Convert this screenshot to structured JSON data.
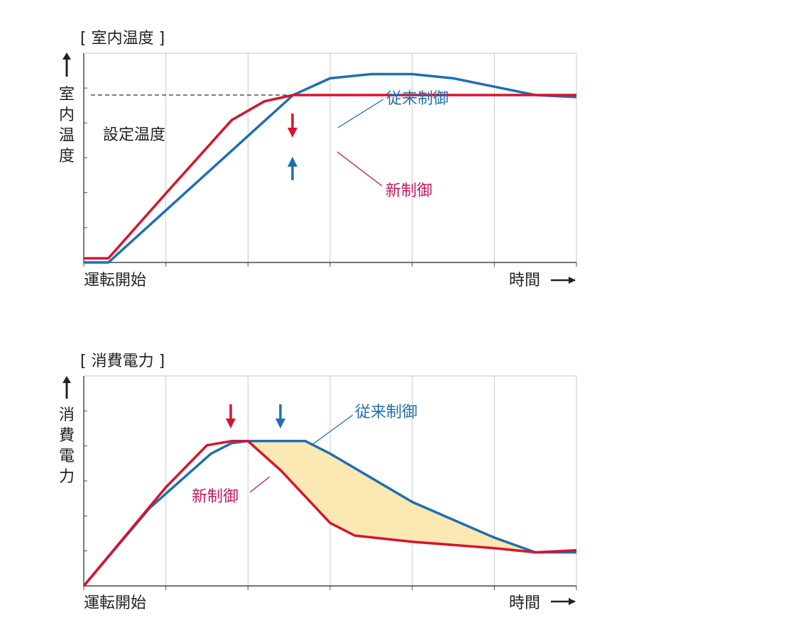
{
  "colors": {
    "new_control": "#d7142c",
    "conventional_control": "#1f6fb2",
    "new_label": "#c2185b",
    "saving_fill": "#fbe8b3",
    "grid": "#c8c8c8",
    "axis": "#222222"
  },
  "chart_data": [
    {
      "type": "line",
      "title": "[ 室内温度 ]",
      "ylabel": "室内温度",
      "xlabel_start": "運転開始",
      "xlabel_end": "時間",
      "setpoint_label": "設定温度",
      "setpoint": 0.8,
      "xlim": [
        0,
        6
      ],
      "ylim": [
        0,
        1
      ],
      "grid": true,
      "series": [
        {
          "name": "従来制御",
          "x": [
            0,
            0.3,
            2.55,
            3.0,
            3.5,
            4.0,
            4.5,
            5.0,
            5.5,
            6.0
          ],
          "y": [
            0,
            0,
            0.8,
            0.88,
            0.9,
            0.9,
            0.88,
            0.84,
            0.8,
            0.79
          ]
        },
        {
          "name": "新制御",
          "x": [
            0,
            0.3,
            1.0,
            1.8,
            2.2,
            2.55,
            6.0
          ],
          "y": [
            0.02,
            0.02,
            0.33,
            0.68,
            0.77,
            0.8,
            0.8
          ]
        }
      ],
      "markers": [
        {
          "series": "新制御",
          "x": 2.55,
          "direction": "down"
        },
        {
          "series": "従来制御",
          "x": 2.55,
          "direction": "up"
        }
      ]
    },
    {
      "type": "area",
      "title": "[ 消費電力 ]",
      "ylabel": "消費電力",
      "xlabel_start": "運転開始",
      "xlabel_end": "時間",
      "xlim": [
        0,
        6
      ],
      "ylim": [
        0,
        1
      ],
      "grid": true,
      "series": [
        {
          "name": "従来制御",
          "x": [
            0,
            0.8,
            1.55,
            1.8,
            2.0,
            2.4,
            2.7,
            3.0,
            4.0,
            5.0,
            5.5,
            6.0
          ],
          "y": [
            0,
            0.37,
            0.63,
            0.68,
            0.69,
            0.69,
            0.69,
            0.63,
            0.4,
            0.23,
            0.16,
            0.16
          ]
        },
        {
          "name": "新制御",
          "x": [
            0,
            1.0,
            1.5,
            1.8,
            2.0,
            2.4,
            3.0,
            3.3,
            4.0,
            5.0,
            5.5,
            6.0
          ],
          "y": [
            0,
            0.47,
            0.67,
            0.69,
            0.69,
            0.55,
            0.3,
            0.24,
            0.21,
            0.18,
            0.16,
            0.17
          ]
        }
      ],
      "markers": [
        {
          "series": "新制御",
          "x": 1.8,
          "direction": "down"
        },
        {
          "series": "従来制御",
          "x": 2.4,
          "direction": "down"
        }
      ]
    }
  ]
}
